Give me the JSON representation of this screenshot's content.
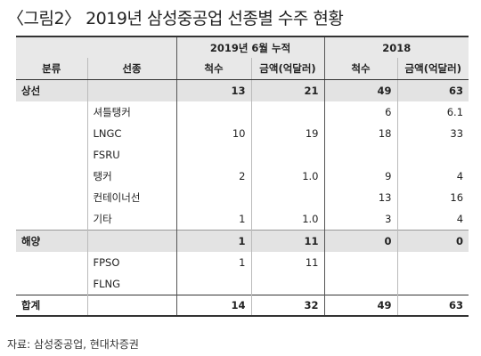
{
  "title": "〈그림2〉 2019년 삼성중공업 선종별 수주 현황",
  "headers": {
    "period_2019": "2019년 6월 누적",
    "period_2018": "2018",
    "col_category": "분류",
    "col_ship_type": "선종",
    "col_count_2019": "척수",
    "col_amount_2019": "금액(억달러)",
    "col_count_2018": "척수",
    "col_amount_2018": "금액(억달러)"
  },
  "rows": [
    {
      "category": "상선",
      "ship_type": "",
      "c2019": "13",
      "a2019": "21",
      "c2018": "49",
      "a2018": "63",
      "kind": "group"
    },
    {
      "category": "",
      "ship_type": "셔틀탱커",
      "c2019": "",
      "a2019": "",
      "c2018": "6",
      "a2018": "6.1",
      "kind": "item"
    },
    {
      "category": "",
      "ship_type": "LNGC",
      "c2019": "10",
      "a2019": "19",
      "c2018": "18",
      "a2018": "33",
      "kind": "item"
    },
    {
      "category": "",
      "ship_type": "FSRU",
      "c2019": "",
      "a2019": "",
      "c2018": "",
      "a2018": "",
      "kind": "item"
    },
    {
      "category": "",
      "ship_type": "탱커",
      "c2019": "2",
      "a2019": "1.0",
      "c2018": "9",
      "a2018": "4",
      "kind": "item"
    },
    {
      "category": "",
      "ship_type": "컨테이너선",
      "c2019": "",
      "a2019": "",
      "c2018": "13",
      "a2018": "16",
      "kind": "item"
    },
    {
      "category": "",
      "ship_type": "기타",
      "c2019": "1",
      "a2019": "1.0",
      "c2018": "3",
      "a2018": "4",
      "kind": "item"
    },
    {
      "category": "해양",
      "ship_type": "",
      "c2019": "1",
      "a2019": "11",
      "c2018": "0",
      "a2018": "0",
      "kind": "group"
    },
    {
      "category": "",
      "ship_type": "FPSO",
      "c2019": "1",
      "a2019": "11",
      "c2018": "",
      "a2018": "",
      "kind": "item"
    },
    {
      "category": "",
      "ship_type": "FLNG",
      "c2019": "",
      "a2019": "",
      "c2018": "",
      "a2018": "",
      "kind": "item"
    },
    {
      "category": "합계",
      "ship_type": "",
      "c2019": "14",
      "a2019": "32",
      "c2018": "49",
      "a2018": "63",
      "kind": "total"
    }
  ],
  "source": "자료: 삼성중공업, 현대차증권"
}
